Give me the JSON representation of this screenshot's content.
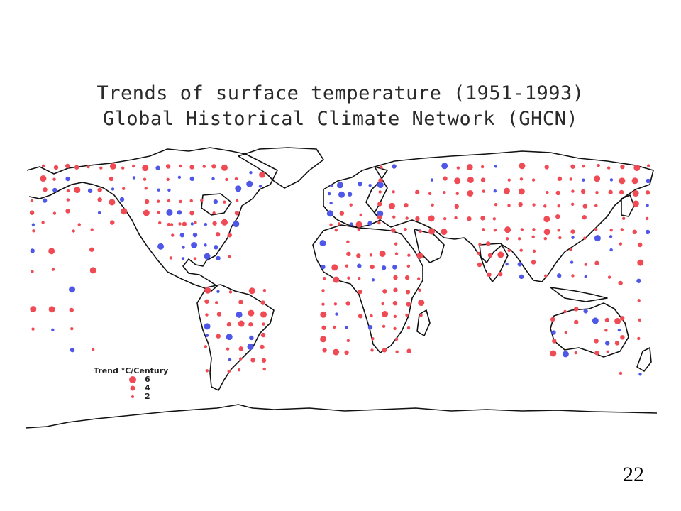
{
  "map": {
    "title_line1": "Trends of surface temperature (1951-1993)",
    "title_line2": "Global Historical Climate Network (GHCN)",
    "colors": {
      "warming": "#f04a55",
      "cooling": "#4f57e8",
      "coastline": "#111111"
    },
    "legend": {
      "title": "Trend °C/Century",
      "entries": [
        {
          "value": "6",
          "size": 6
        },
        {
          "value": "4",
          "size": 4
        },
        {
          "value": "2",
          "size": 2
        }
      ]
    }
  },
  "page_number": "22"
}
